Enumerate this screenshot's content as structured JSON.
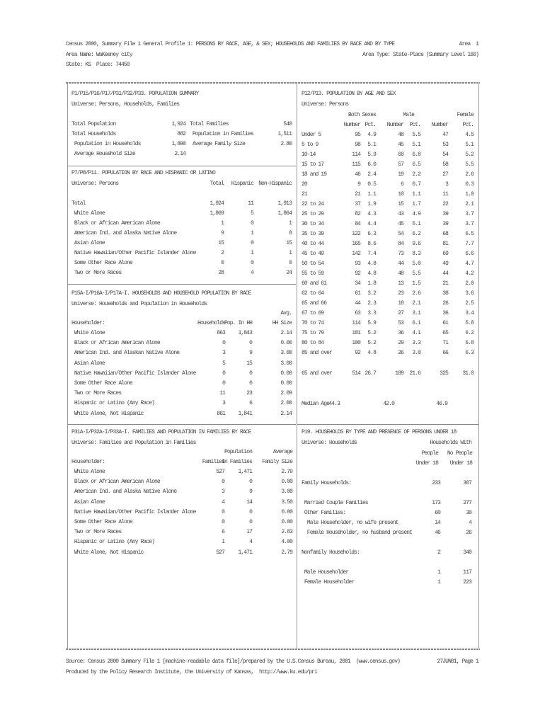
{
  "header": {
    "title": "Census 2000, Summary File 1 General Profile 1: PERSONS BY RACE, AGE, & SEX; HOUSEHOLDS AND FAMILIES BY RACE AND BY TYPE",
    "area": "Area  1",
    "area_name": "Area Name: WaKeeney city",
    "area_type": "Area Type: State-Place (Summary Level 160)",
    "state_place": "State: KS  Place: 74450"
  },
  "p1": {
    "title": "P1/P15/P16/P17/P31/P32/P33. POPULATION SUMMARY",
    "universe": "Universe: Persons, Households, Families",
    "rows": [
      [
        "Total Population",
        "1,924",
        "Total Families",
        "540"
      ],
      [
        "Total Households",
        "882",
        " Population in Families",
        "1,511"
      ],
      [
        " Population in Households",
        "1,890",
        " Average Family Size",
        "2.80"
      ],
      [
        " Average Household Size",
        "2.14",
        "",
        ""
      ]
    ]
  },
  "p7": {
    "title": "P7/P8/P11. POPULATION BY RACE AND HISPANIC OR LATINO",
    "universe": "Universe: Persons",
    "headers": [
      "Total",
      "Hispanic",
      "Non-Hispanic"
    ],
    "rows": [
      [
        "Total",
        "1,924",
        "11",
        "1,913"
      ],
      [
        " White Alone",
        "1,869",
        "5",
        "1,864"
      ],
      [
        " Black or African American Alone",
        "1",
        "0",
        "1"
      ],
      [
        " American Ind. and Alaska Native Alone",
        "9",
        "1",
        "8"
      ],
      [
        " Asian Alone",
        "15",
        "0",
        "15"
      ],
      [
        " Native Hawaiian/Other Pacific Islander Alone",
        "2",
        "1",
        "1"
      ],
      [
        " Some Other Race Alone",
        "0",
        "0",
        "0"
      ],
      [
        " Two or More Races",
        "28",
        "4",
        "24"
      ]
    ]
  },
  "p15": {
    "title": "P15A-I/P16A-I/P17A-I. HOUSEHOLDS AND HOUSEHOLD POPULATION BY RACE",
    "universe": "Universe: Households and Population in Households",
    "header_top": [
      "",
      "",
      "Avg."
    ],
    "headers": [
      "Householder:",
      "Households",
      "Pop. In HH",
      "HH Size"
    ],
    "rows": [
      [
        " White Alone",
        "863",
        "1,843",
        "2.14"
      ],
      [
        " Black or African American Alone",
        "0",
        "0",
        "0.00"
      ],
      [
        " American Ind. and Alaskan Native Alone",
        "3",
        "9",
        "3.00"
      ],
      [
        " Asian Alone",
        "5",
        "15",
        "3.00"
      ],
      [
        " Native Hawaiian/Other Pacific Islander Alone",
        "0",
        "0",
        "0.00"
      ],
      [
        " Some Other Race Alone",
        "0",
        "0",
        "0.00"
      ],
      [
        " Two or More Races",
        "11",
        "23",
        "2.09"
      ],
      [
        " Hispanic or Latino (Any Race)",
        "3",
        "6",
        "2.00"
      ],
      [
        " White Alone, Not Hispanic",
        "861",
        "1,841",
        "2.14"
      ]
    ]
  },
  "p31": {
    "title": "P31A-I/P32A-I/P33A-I. FAMILIES AND POPULATION IN FAMILIES BY RACE",
    "universe": "Universe: Families and Population in Families",
    "header_top": [
      "",
      "Population",
      "Average"
    ],
    "headers": [
      "Householder:",
      "Families",
      "In Families",
      "Family Size"
    ],
    "rows": [
      [
        " White Alone",
        "527",
        "1,471",
        "2.79"
      ],
      [
        " Black or African American Alone",
        "0",
        "0",
        "0.00"
      ],
      [
        " American Ind. and Alaska Native Alone",
        "3",
        "9",
        "3.00"
      ],
      [
        " Asian Alone",
        "4",
        "14",
        "3.50"
      ],
      [
        " Native Hawaiian/Other Pacific Islander Alone",
        "0",
        "0",
        "0.00"
      ],
      [
        " Some Other Race Alone",
        "0",
        "0",
        "0.00"
      ],
      [
        " Two or More Races",
        "6",
        "17",
        "2.83"
      ],
      [
        " Hispanic or Latino (Any Race)",
        "1",
        "4",
        "4.00"
      ],
      [
        " White Alone, Not Hispanic",
        "527",
        "1,471",
        "2.79"
      ]
    ]
  },
  "p12": {
    "title": "P12/P13. POPULATION BY AGE AND SEX",
    "universe": "Universe: Persons",
    "group_headers": [
      "Both Sexes",
      "Male",
      "Female"
    ],
    "sub_headers": [
      "Number",
      "Pct.",
      "Number",
      "Pct.",
      "Number",
      "Pct."
    ],
    "rows": [
      [
        "Under 5",
        "95",
        "4.9",
        "48",
        "5.5",
        "47",
        "4.5"
      ],
      [
        "5 to 9",
        "98",
        "5.1",
        "45",
        "5.1",
        "53",
        "5.1"
      ],
      [
        "10-14",
        "114",
        "5.9",
        "60",
        "6.8",
        "54",
        "5.2"
      ],
      [
        "15 to 17",
        "115",
        "6.0",
        "57",
        "6.5",
        "58",
        "5.5"
      ],
      [
        "18 and 19",
        "46",
        "2.4",
        "19",
        "2.2",
        "27",
        "2.6"
      ],
      [
        "20",
        "9",
        "0.5",
        "6",
        "0.7",
        "3",
        "0.3"
      ],
      [
        "21",
        "21",
        "1.1",
        "10",
        "1.1",
        "11",
        "1.0"
      ],
      [
        "22 to 24",
        "37",
        "1.9",
        "15",
        "1.7",
        "22",
        "2.1"
      ],
      [
        "25 to 29",
        "82",
        "4.3",
        "43",
        "4.9",
        "39",
        "3.7"
      ],
      [
        "30 to 34",
        "84",
        "4.4",
        "45",
        "5.1",
        "39",
        "3.7"
      ],
      [
        "35 to 39",
        "122",
        "6.3",
        "54",
        "6.2",
        "68",
        "6.5"
      ],
      [
        "40 to 44",
        "165",
        "8.6",
        "84",
        "9.6",
        "81",
        "7.7"
      ],
      [
        "45 to 49",
        "142",
        "7.4",
        "73",
        "8.3",
        "69",
        "6.6"
      ],
      [
        "50 to 54",
        "93",
        "4.8",
        "44",
        "5.0",
        "49",
        "4.7"
      ],
      [
        "55 to 59",
        "92",
        "4.8",
        "48",
        "5.5",
        "44",
        "4.2"
      ],
      [
        "60 and 61",
        "34",
        "1.8",
        "13",
        "1.5",
        "21",
        "2.0"
      ],
      [
        "62 to 64",
        "61",
        "3.2",
        "23",
        "2.6",
        "38",
        "3.6"
      ],
      [
        "65 and 66",
        "44",
        "2.3",
        "18",
        "2.1",
        "26",
        "2.5"
      ],
      [
        "67 to 69",
        "63",
        "3.3",
        "27",
        "3.1",
        "36",
        "3.4"
      ],
      [
        "70 to 74",
        "114",
        "5.9",
        "53",
        "6.1",
        "61",
        "5.8"
      ],
      [
        "75 to 79",
        "101",
        "5.2",
        "36",
        "4.1",
        "65",
        "6.2"
      ],
      [
        "80 to 84",
        "100",
        "5.2",
        "29",
        "3.3",
        "71",
        "6.8"
      ],
      [
        "85 and over",
        "92",
        "4.8",
        "26",
        "3.0",
        "66",
        "6.3"
      ]
    ],
    "over_65": [
      "65 and over",
      "514",
      "26.7",
      "189",
      "21.6",
      "325",
      "31.0"
    ],
    "median": [
      "Median Age",
      "44.3",
      "42.0",
      "46.9"
    ]
  },
  "p19": {
    "title": "P19. HOUSEHOLDS BY TYPE AND PRESENCE OF PERSONS UNDER 18",
    "universe": "Universe: Households",
    "group_header": "Households With",
    "headers_1": [
      "People",
      "No People"
    ],
    "headers_2": [
      "Under 18",
      "Under 18"
    ],
    "rows": [
      [
        "Family Households:",
        "233",
        "307"
      ],
      [
        " Married Couple Families",
        "173",
        "277"
      ],
      [
        " Other Families:",
        "60",
        "30"
      ],
      [
        "  Male Householder, no wife present",
        "14",
        "4"
      ],
      [
        "  Female Householder, no husband present",
        "46",
        "26"
      ],
      [
        "Nonfamily Households:",
        "2",
        "340"
      ],
      [
        " Male Householder",
        "1",
        "117"
      ],
      [
        " Female Householder",
        "1",
        "223"
      ]
    ]
  },
  "footer": {
    "source": "Source: Census 2000 Summary File 1 [machine-readable data file]/prepared by the U.S.Census Bureau, 2001  (www.census.gov)",
    "date_page": "27JUN01, Page 1",
    "produced": "Produced by the Policy Research Institute, the University of Kansas,  http://www.ku.edu/pri"
  }
}
